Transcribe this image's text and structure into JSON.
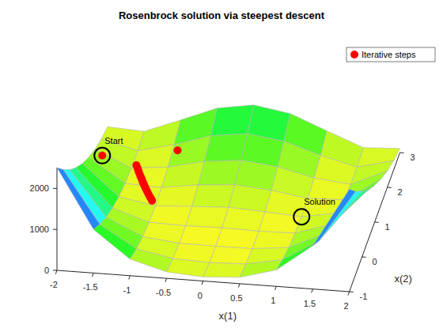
{
  "chart_data": {
    "type": "surface3d",
    "title": "Rosenbrock solution via steepest descent",
    "x_label": "x(1)",
    "y_label": "x(2)",
    "x": [
      -2,
      -1.5,
      -1,
      -0.5,
      0,
      0.5,
      1,
      1.5,
      2
    ],
    "y": [
      -1,
      -0.5,
      0,
      0.5,
      1,
      1.5,
      2,
      2.5,
      3
    ],
    "z": [
      [
        2509,
        1062.5,
        404,
        158.5,
        101,
        156.5,
        400,
        1056.5,
        2501
      ],
      [
        2034,
        762.5,
        229,
        58.5,
        26,
        56.5,
        225,
        756.5,
        2026
      ],
      [
        1609,
        512.5,
        104,
        8.5,
        1,
        6.5,
        100,
        506.5,
        1601
      ],
      [
        1234,
        312.5,
        29,
        8.5,
        26,
        6.5,
        25,
        306.5,
        1226
      ],
      [
        909,
        162.5,
        4,
        58.5,
        101,
        56.5,
        0,
        156.5,
        901
      ],
      [
        634,
        62.5,
        29,
        158.5,
        226,
        156.5,
        25,
        56.5,
        626
      ],
      [
        409,
        12.5,
        104,
        308.5,
        401,
        306.5,
        100,
        6.5,
        401
      ],
      [
        234,
        12.5,
        229,
        508.5,
        626,
        506.5,
        225,
        6.5,
        226
      ],
      [
        109,
        62.5,
        404,
        758.5,
        901,
        756.5,
        400,
        56.5,
        101
      ]
    ],
    "xlim": [
      -2,
      2
    ],
    "xticks": [
      -2,
      -1.5,
      -1,
      -0.5,
      0,
      0.5,
      1,
      1.5,
      2
    ],
    "ylim": [
      -1,
      3
    ],
    "yticks": [
      -1,
      0,
      1,
      2,
      3
    ],
    "zlim": [
      0,
      2509
    ],
    "zticks": [
      0,
      1000,
      2000
    ],
    "legend": "northeast",
    "series": [
      {
        "name": "Iterative steps",
        "color": "#ff0000",
        "marker": "circle",
        "x": [
          -1.9,
          -0.93,
          -1.45,
          -1.42,
          -1.4,
          -1.38,
          -1.35,
          -1.33,
          -1.31,
          -1.29,
          -1.27,
          -1.25,
          -1.23,
          -1.21,
          -1.18,
          -1.15,
          -1.12,
          -1.09,
          -1.07
        ],
        "y": [
          2,
          2.35,
          2.1,
          2.02,
          1.96,
          1.9,
          1.82,
          1.77,
          1.72,
          1.66,
          1.61,
          1.56,
          1.51,
          1.46,
          1.39,
          1.32,
          1.25,
          1.19,
          1.14
        ],
        "z": [
          267.6,
          224,
          6,
          5.86,
          5.76,
          5.66,
          5.52,
          5.43,
          5.34,
          5.24,
          5.15,
          5.06,
          4.97,
          4.88,
          4.75,
          4.62,
          4.49,
          4.37,
          4.28
        ]
      }
    ],
    "annotations": [
      {
        "text": "Start",
        "x": -1.9,
        "y": 2,
        "z": 267.6
      },
      {
        "text": "Solution",
        "x": 1,
        "y": 1,
        "z": 0
      }
    ]
  }
}
